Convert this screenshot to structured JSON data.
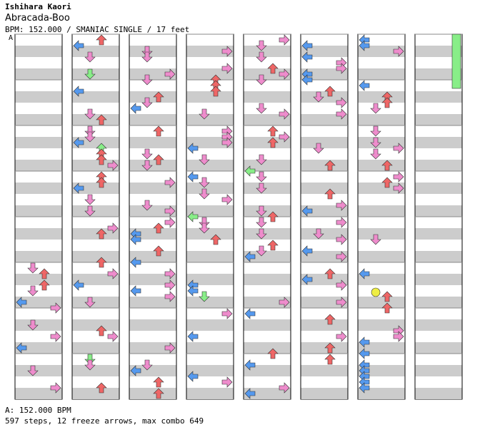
{
  "song": {
    "artist": "Ishihara Kaori",
    "title": "Abracada-Boo",
    "meta": "BPM: 152.000 / SMANIAC SINGLE / 17 feet"
  },
  "chart_data": {
    "type": "step-chart",
    "columns": 8,
    "bpm_marker": "A",
    "lane_colors": {
      "left": "#5599ee",
      "down": "#ee8ccc",
      "up": "#ee6666",
      "right": "#ee8ccc",
      "freeze": "#88ee88",
      "mine": "#eeee44"
    },
    "legend": {
      "bpm_line": "A: 152.000 BPM"
    },
    "stats": {
      "steps": 597,
      "freeze_arrows": 12,
      "max_combo": 649,
      "text": "597 steps, 12 freeze arrows, max combo 649"
    }
  }
}
